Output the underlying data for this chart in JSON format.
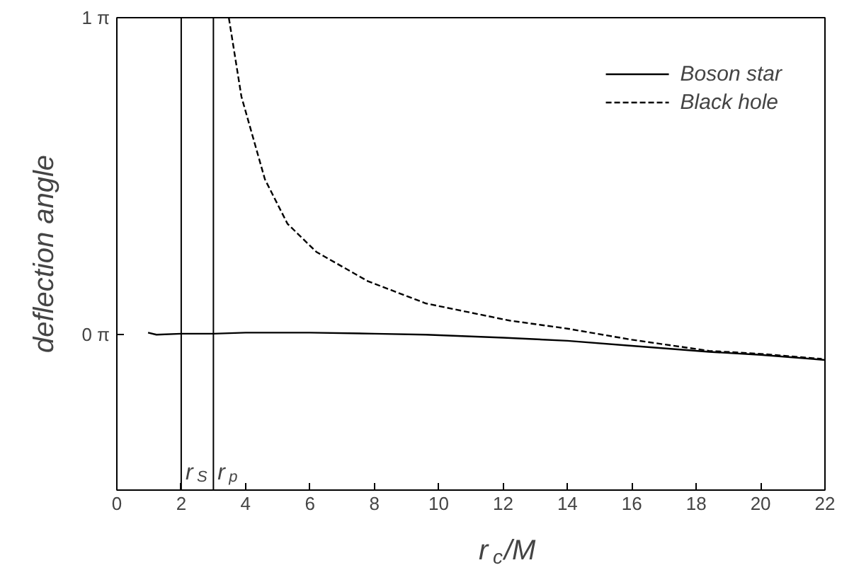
{
  "chart_data": {
    "type": "line",
    "xlabel": "r$_{c}$/M",
    "ylabel": "deflection angle",
    "xlim": [
      0,
      22
    ],
    "ylim": [
      -1.54,
      3.1416
    ],
    "xticks": [
      0,
      2,
      4,
      6,
      8,
      10,
      12,
      14,
      16,
      18,
      20,
      22
    ],
    "yticks": [
      {
        "value": 0,
        "label": "0 π"
      },
      {
        "value": 3.1416,
        "label": "1 π"
      }
    ],
    "series": [
      {
        "name": "Boson star",
        "color": "#000000",
        "line_style": "solid",
        "x": [
          0.97,
          1.23,
          2,
          3,
          4,
          5,
          6,
          8,
          9.6,
          12,
          14,
          16,
          18.4,
          20,
          22
        ],
        "values": [
          0.02,
          0.0,
          0.01,
          0.01,
          0.02,
          0.02,
          0.02,
          0.01,
          0.0,
          -0.03,
          -0.06,
          -0.11,
          -0.17,
          -0.2,
          -0.25
        ]
      },
      {
        "name": "Black hole",
        "color": "#000000",
        "line_style": "dashed",
        "x": [
          3.48,
          3.87,
          4.6,
          5.3,
          6.2,
          7.8,
          9.6,
          12.2,
          14,
          16,
          18.4,
          20,
          21.9
        ],
        "values": [
          3.14,
          2.36,
          1.54,
          1.1,
          0.82,
          0.53,
          0.31,
          0.14,
          0.06,
          -0.05,
          -0.16,
          -0.19,
          -0.24
        ]
      }
    ],
    "ref_lines": [
      {
        "axis": "x",
        "value": 2,
        "label": "r$_{S}$",
        "color": "#000000"
      },
      {
        "axis": "x",
        "value": 3,
        "label": "r$_{p}$",
        "color": "#000000"
      }
    ],
    "legend": "top right",
    "grid": false
  }
}
